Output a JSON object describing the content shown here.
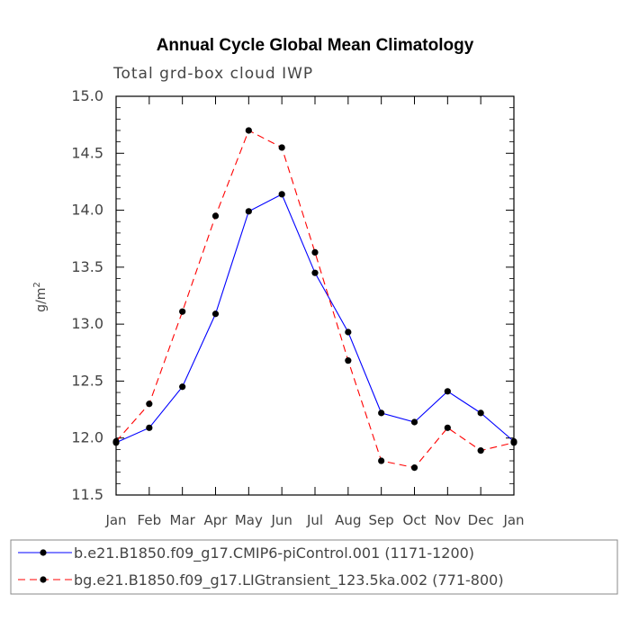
{
  "chart_data": {
    "type": "line",
    "title": "Annual Cycle Global Mean Climatology",
    "subtitle": "Total grd-box cloud IWP",
    "xlabel": "",
    "ylabel": "g/m",
    "ylabel_sup": "2",
    "categories": [
      "Jan",
      "Feb",
      "Mar",
      "Apr",
      "May",
      "Jun",
      "Jul",
      "Aug",
      "Sep",
      "Oct",
      "Nov",
      "Dec",
      "Jan"
    ],
    "ylim": [
      11.5,
      15.0
    ],
    "yticks": [
      "11.5",
      "12.0",
      "12.5",
      "13.0",
      "13.5",
      "14.0",
      "14.5",
      "15.0"
    ],
    "series": [
      {
        "name": "b.e21.B1850.f09_g17.CMIP6-piControl.001 (1171-1200)",
        "color": "#0000ff",
        "dash": "solid",
        "values": [
          11.96,
          12.09,
          12.45,
          13.09,
          13.99,
          14.14,
          13.45,
          12.93,
          12.22,
          12.14,
          12.41,
          12.22,
          11.97
        ]
      },
      {
        "name": "bg.e21.B1850.f09_g17.LIGtransient_123.5ka.002 (771-800)",
        "color": "#ff0000",
        "dash": "dashed",
        "values": [
          11.97,
          12.3,
          13.11,
          13.95,
          14.7,
          14.55,
          13.63,
          12.68,
          11.8,
          11.74,
          12.09,
          11.89,
          11.96
        ]
      }
    ],
    "grid": false,
    "legend_position": "bottom"
  }
}
